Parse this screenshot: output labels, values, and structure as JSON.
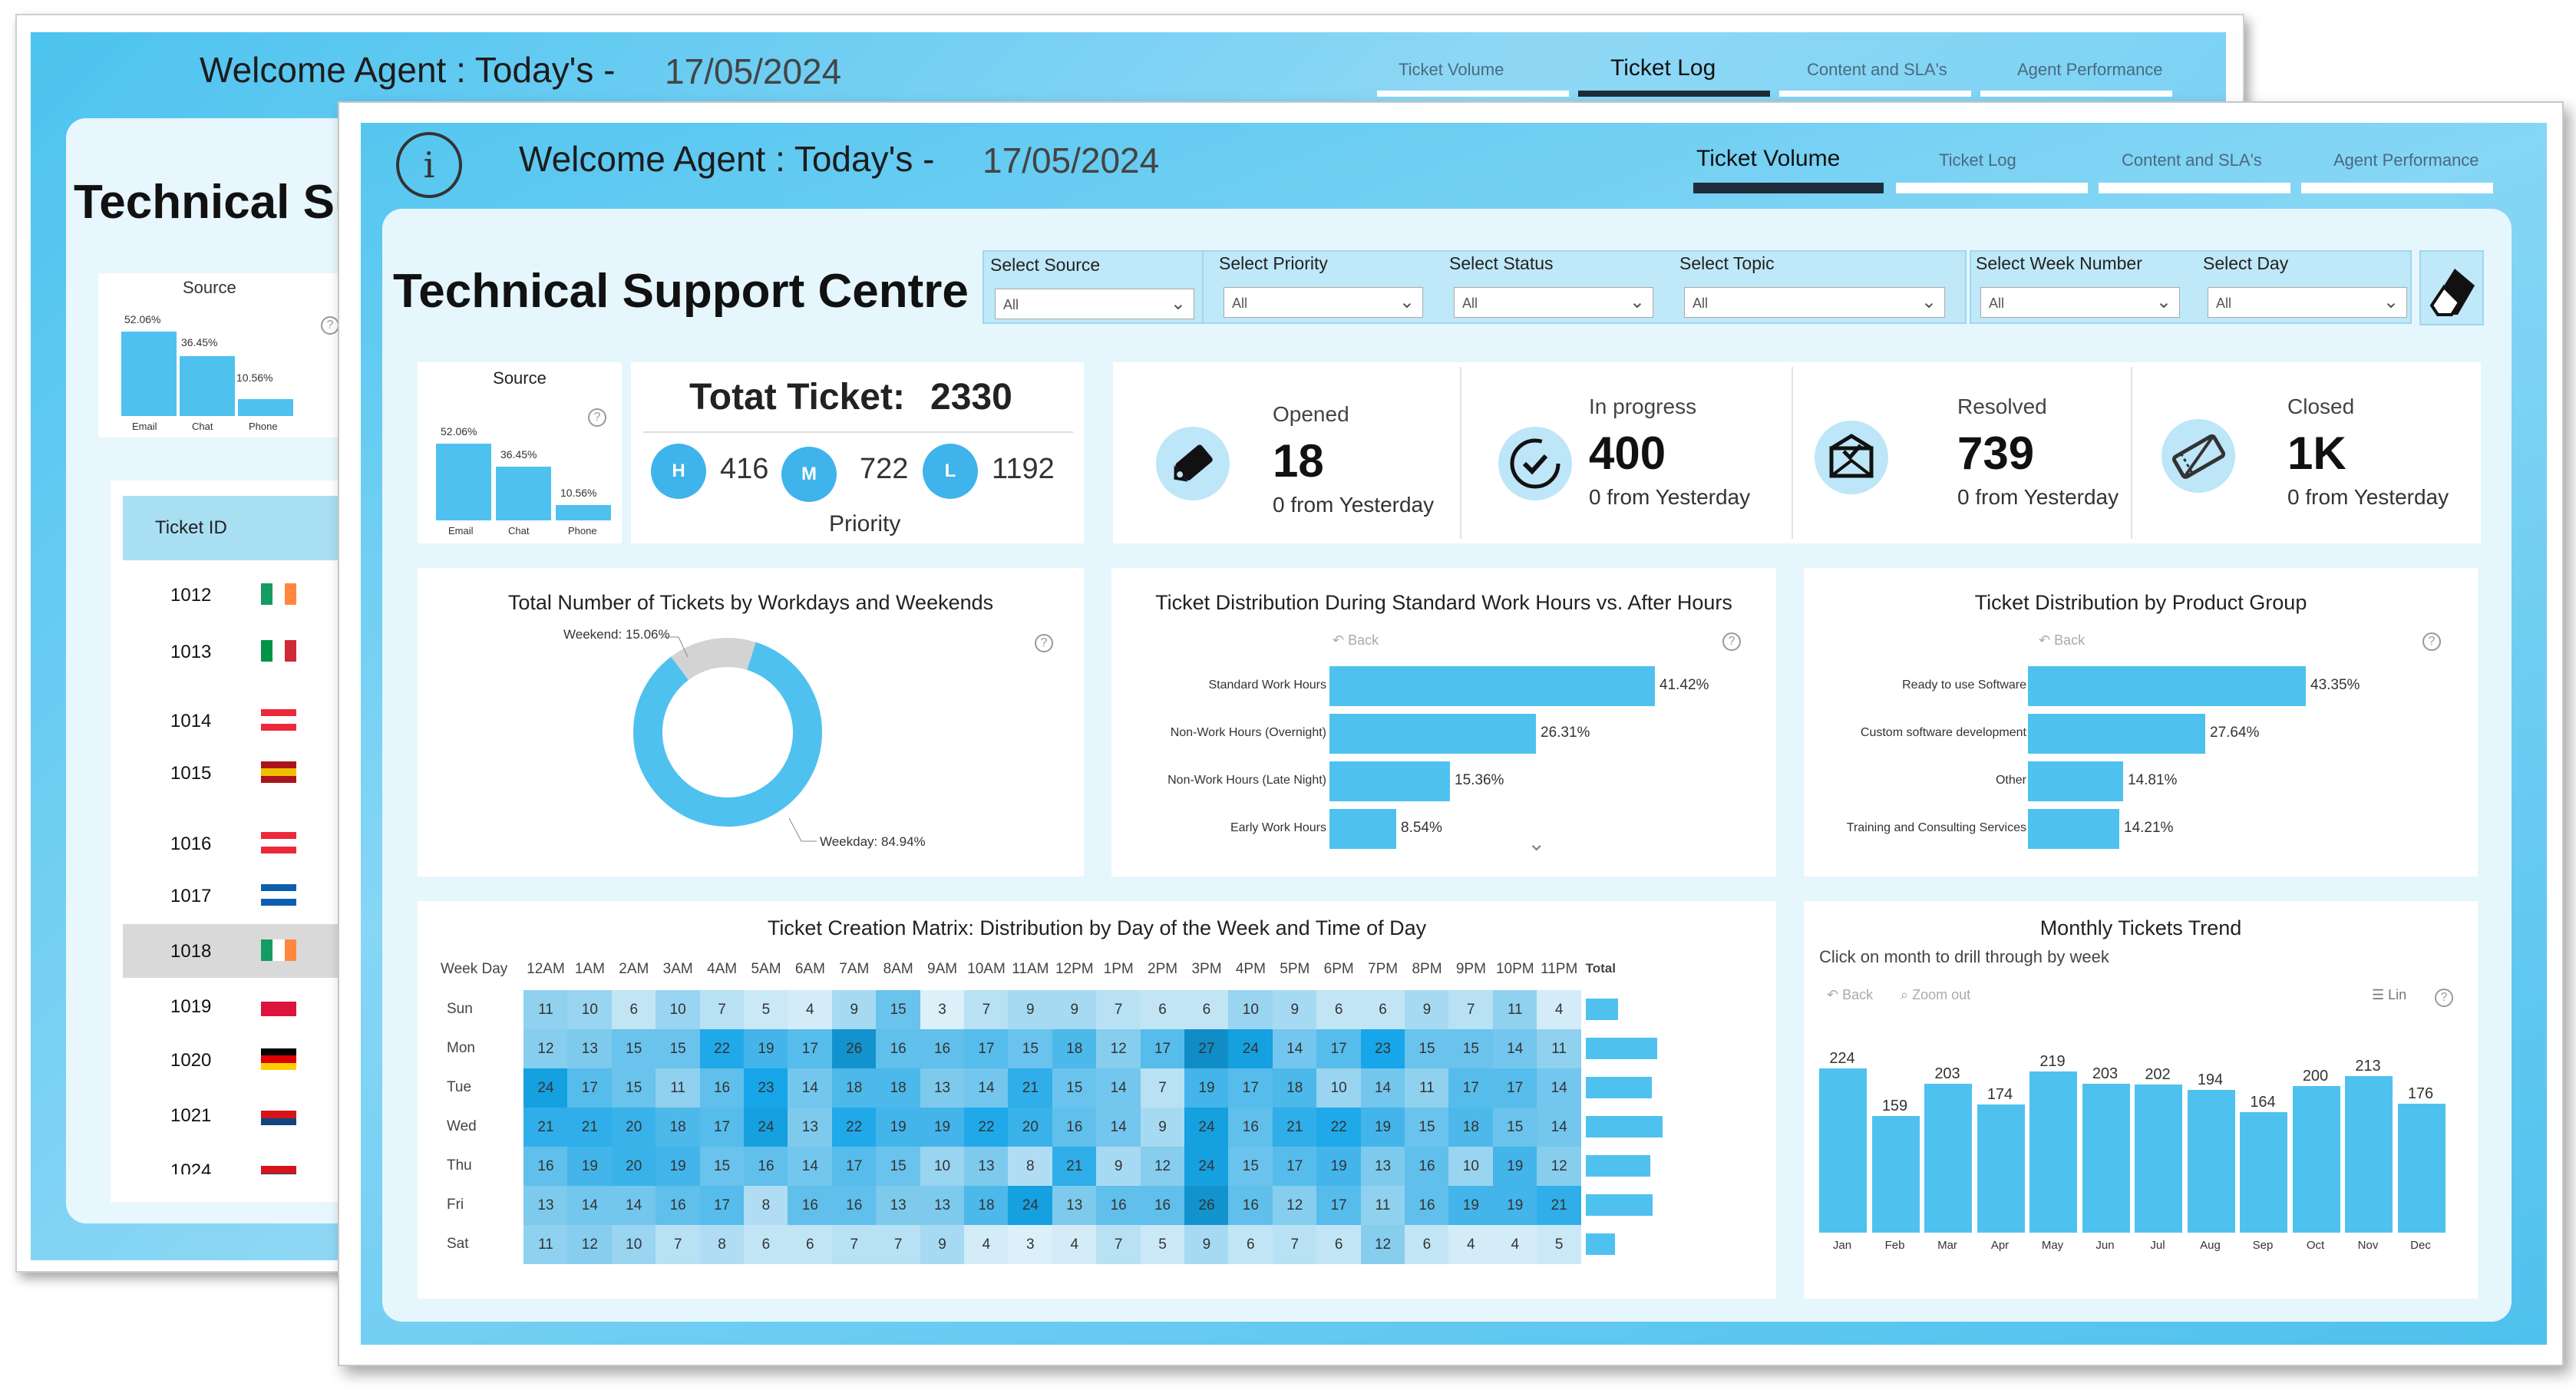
{
  "back_window": {
    "welcome": "Welcome Agent : Today's -",
    "date": "17/05/2024",
    "tabs": [
      "Ticket Volume",
      "Ticket Log",
      "Content and SLA's",
      "Agent Performance"
    ],
    "heading": "Technical Su",
    "source_title": "Source",
    "source_values": [
      "52.06%",
      "36.45%",
      "10.56%"
    ],
    "source_cats": [
      "Email",
      "Chat",
      "Phone"
    ],
    "table_header": "Ticket ID",
    "rows": [
      {
        "id": "1012",
        "flag": [
          "#169b62",
          "#ffffff",
          "#ff883e"
        ],
        "dir": "v"
      },
      {
        "id": "1013",
        "flag": [
          "#009246",
          "#ffffff",
          "#ce2b37"
        ],
        "dir": "v"
      },
      {
        "id": "1014",
        "flag": [
          "#ed2939",
          "#ffffff",
          "#ed2939"
        ],
        "dir": "h"
      },
      {
        "id": "1015",
        "flag": [
          "#aa151b",
          "#f1bf00",
          "#aa151b"
        ],
        "dir": "h"
      },
      {
        "id": "1016",
        "flag": [
          "#ed2939",
          "#ffffff",
          "#ed2939"
        ],
        "dir": "h"
      },
      {
        "id": "1017",
        "flag": [
          "#0d5eaf",
          "#ffffff",
          "#0d5eaf"
        ],
        "dir": "h"
      },
      {
        "id": "1018",
        "flag": [
          "#169b62",
          "#ffffff",
          "#ff883e"
        ],
        "dir": "v"
      },
      {
        "id": "1019",
        "flag": [
          "#ffffff",
          "#dc143c",
          "#dc143c"
        ],
        "dir": "h"
      },
      {
        "id": "1020",
        "flag": [
          "#000000",
          "#dd0000",
          "#ffce00"
        ],
        "dir": "h"
      },
      {
        "id": "1021",
        "flag": [
          "#ffffff",
          "#d7141a",
          "#11457e"
        ],
        "dir": "h"
      },
      {
        "id": "1024",
        "flag": [
          "#ffffff",
          "#d7141a",
          "#11457e"
        ],
        "dir": "h"
      }
    ]
  },
  "header": {
    "welcome": "Welcome Agent : Today's -",
    "date": "17/05/2024",
    "tabs": [
      "Ticket Volume",
      "Ticket Log",
      "Content and SLA's",
      "Agent Performance"
    ],
    "active_tab": "Ticket Volume"
  },
  "title": "Technical Support Centre",
  "slicers": [
    {
      "label": "Select Source",
      "value": "All"
    },
    {
      "label": "Select Priority",
      "value": "All"
    },
    {
      "label": "Select Status",
      "value": "All"
    },
    {
      "label": "Select Topic",
      "value": "All"
    },
    {
      "label": "Select Week Number",
      "value": "All"
    },
    {
      "label": "Select Day",
      "value": "All"
    }
  ],
  "source": {
    "title": "Source",
    "values": [
      "52.06%",
      "36.45%",
      "10.56%"
    ],
    "fractions": [
      0.5206,
      0.3645,
      0.1056
    ],
    "cats": [
      "Email",
      "Chat",
      "Phone"
    ]
  },
  "total": {
    "label": "Totat Ticket:",
    "value": "2330",
    "priority_label": "Priority",
    "priorities": [
      {
        "code": "H",
        "value": "416"
      },
      {
        "code": "M",
        "value": "722"
      },
      {
        "code": "L",
        "value": "1192"
      }
    ]
  },
  "kpis": [
    {
      "title": "Opened",
      "value": "18",
      "sub": "0 from Yesterday",
      "icon": "tag-icon"
    },
    {
      "title": "In progress",
      "value": "400",
      "sub": "0 from Yesterday",
      "icon": "progress-check-icon"
    },
    {
      "title": "Resolved",
      "value": "739",
      "sub": "0 from Yesterday",
      "icon": "envelope-check-icon"
    },
    {
      "title": "Closed",
      "value": "1K",
      "sub": "0 from Yesterday",
      "icon": "ticket-closed-icon"
    }
  ],
  "colors": {
    "accent": "#4fc1ef",
    "dark": "#1e2d3a",
    "panel": "#e6f6fd",
    "donut_grey": "#d3d3d3"
  },
  "chart_data": [
    {
      "type": "pie",
      "title": "Total Number of Tickets by Workdays and Weekends",
      "categories": [
        "Weekend",
        "Weekday"
      ],
      "values": [
        15.06,
        84.94
      ],
      "labels": [
        "Weekend: 15.06%",
        "Weekday: 84.94%"
      ]
    },
    {
      "type": "bar",
      "orientation": "horizontal",
      "title": "Ticket Distribution During Standard Work Hours vs. After Hours",
      "back_label": "Back",
      "categories": [
        "Standard Work Hours",
        "Non-Work Hours (Overnight)",
        "Non-Work Hours (Late Night)",
        "Early Work Hours"
      ],
      "values": [
        41.42,
        26.31,
        15.36,
        8.54
      ],
      "labels": [
        "41.42%",
        "26.31%",
        "15.36%",
        "8.54%"
      ]
    },
    {
      "type": "bar",
      "orientation": "horizontal",
      "title": "Ticket Distribution by Product Group",
      "back_label": "Back",
      "categories": [
        "Ready to use Software",
        "Custom software development",
        "Other",
        "Training and Consulting Services"
      ],
      "values": [
        43.35,
        27.64,
        14.81,
        14.21
      ],
      "labels": [
        "43.35%",
        "27.64%",
        "14.81%",
        "14.21%"
      ]
    },
    {
      "type": "heatmap",
      "title": "Ticket Creation Matrix: Distribution by Day of the Week and Time of Day",
      "row_header": "Week Day",
      "total_header": "Total",
      "columns": [
        "12AM",
        "1AM",
        "2AM",
        "3AM",
        "4AM",
        "5AM",
        "6AM",
        "7AM",
        "8AM",
        "9AM",
        "10AM",
        "11AM",
        "12PM",
        "1PM",
        "2PM",
        "3PM",
        "4PM",
        "5PM",
        "6PM",
        "7PM",
        "8PM",
        "9PM",
        "10PM",
        "11PM"
      ],
      "rows": [
        "Sun",
        "Mon",
        "Tue",
        "Wed",
        "Thu",
        "Fri",
        "Sat"
      ],
      "values": [
        [
          11,
          10,
          6,
          10,
          7,
          5,
          4,
          9,
          15,
          3,
          7,
          9,
          9,
          7,
          6,
          6,
          10,
          9,
          6,
          6,
          9,
          7,
          11,
          4
        ],
        [
          12,
          13,
          15,
          15,
          22,
          19,
          17,
          26,
          16,
          16,
          17,
          15,
          18,
          12,
          17,
          27,
          24,
          14,
          17,
          23,
          15,
          15,
          14,
          11
        ],
        [
          24,
          17,
          15,
          11,
          16,
          23,
          14,
          18,
          18,
          13,
          14,
          21,
          15,
          14,
          7,
          19,
          17,
          18,
          10,
          14,
          11,
          17,
          17,
          14
        ],
        [
          21,
          21,
          20,
          18,
          17,
          24,
          13,
          22,
          19,
          19,
          22,
          20,
          16,
          14,
          9,
          24,
          16,
          21,
          22,
          19,
          15,
          18,
          15,
          14
        ],
        [
          16,
          19,
          20,
          19,
          15,
          16,
          14,
          17,
          15,
          10,
          13,
          8,
          21,
          9,
          12,
          24,
          15,
          17,
          19,
          13,
          16,
          10,
          19,
          12
        ],
        [
          13,
          14,
          14,
          16,
          17,
          8,
          16,
          16,
          13,
          13,
          18,
          24,
          13,
          16,
          16,
          26,
          16,
          12,
          17,
          11,
          16,
          19,
          19,
          21
        ],
        [
          11,
          12,
          10,
          7,
          8,
          6,
          6,
          7,
          7,
          9,
          4,
          3,
          4,
          7,
          5,
          9,
          6,
          7,
          6,
          12,
          6,
          4,
          4,
          5
        ]
      ]
    },
    {
      "type": "bar",
      "title": "Monthly Tickets Trend",
      "subtitle": "Click on month to drill through by week",
      "back_label": "Back",
      "zoom_label": "Zoom out",
      "lin_label": "Lin",
      "categories": [
        "Jan",
        "Feb",
        "Mar",
        "Apr",
        "May",
        "Jun",
        "Jul",
        "Aug",
        "Sep",
        "Oct",
        "Nov",
        "Dec"
      ],
      "values": [
        224,
        159,
        203,
        174,
        219,
        203,
        202,
        194,
        164,
        200,
        213,
        176
      ]
    }
  ]
}
